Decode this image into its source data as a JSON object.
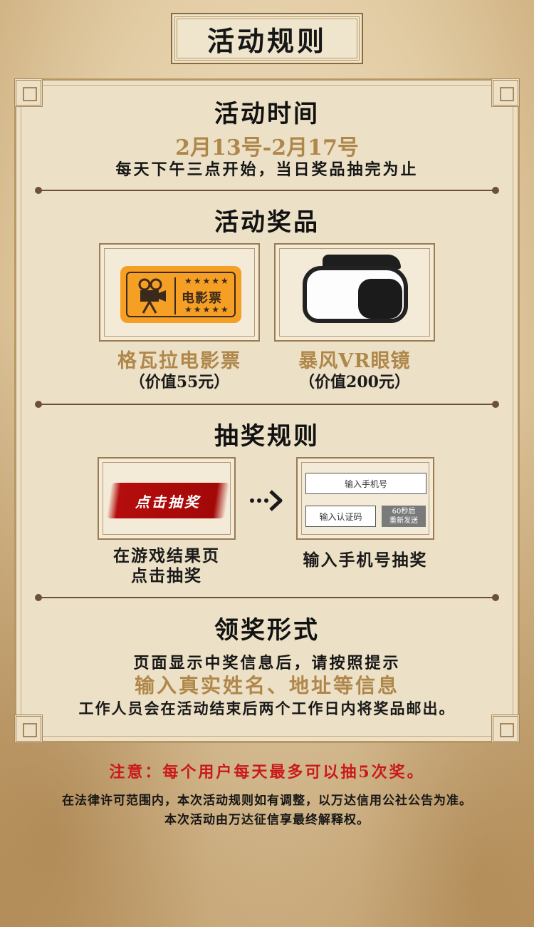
{
  "title": "活动规则",
  "sections": {
    "time": {
      "heading": "活动时间",
      "dates": "2月13号-2月17号",
      "detail": "每天下午三点开始，当日奖品抽完为止"
    },
    "prizes": {
      "heading": "活动奖品",
      "items": [
        {
          "name": "格瓦拉电影票",
          "value": "（价值55元）",
          "ticket_text": "电影票"
        },
        {
          "name": "暴风VR眼镜",
          "value": "（价值200元）"
        }
      ]
    },
    "rules": {
      "heading": "抽奖规则",
      "step1_button": "点击抽奖",
      "step1_caption_line1": "在游戏结果页",
      "step1_caption_line2": "点击抽奖",
      "step2_phone_placeholder": "输入手机号",
      "step2_code_placeholder": "输入认证码",
      "step2_resend_line1": "60秒后",
      "step2_resend_line2": "重新发送",
      "step2_caption": "输入手机号抽奖"
    },
    "claim": {
      "heading": "领奖形式",
      "line1": "页面显示中奖信息后，请按照提示",
      "line2": "输入真实姓名、地址等信息",
      "line3": "工作人员会在活动结束后两个工作日内将奖品邮出。"
    }
  },
  "notice": "注意：每个用户每天最多可以抽5次奖。",
  "footer": {
    "line1": "在法律许可范围内，本次活动规则如有调整，以万达信用公社公告为准。",
    "line2": "本次活动由万达征信享最终解释权。"
  },
  "colors": {
    "gold": "#b0874b",
    "notice_red": "#c91a1a",
    "ticket_orange": "#f59f24",
    "button_red": "#a20808"
  },
  "icons": [
    "film-projector-icon",
    "vr-headset-image",
    "arrow-right-icon"
  ]
}
